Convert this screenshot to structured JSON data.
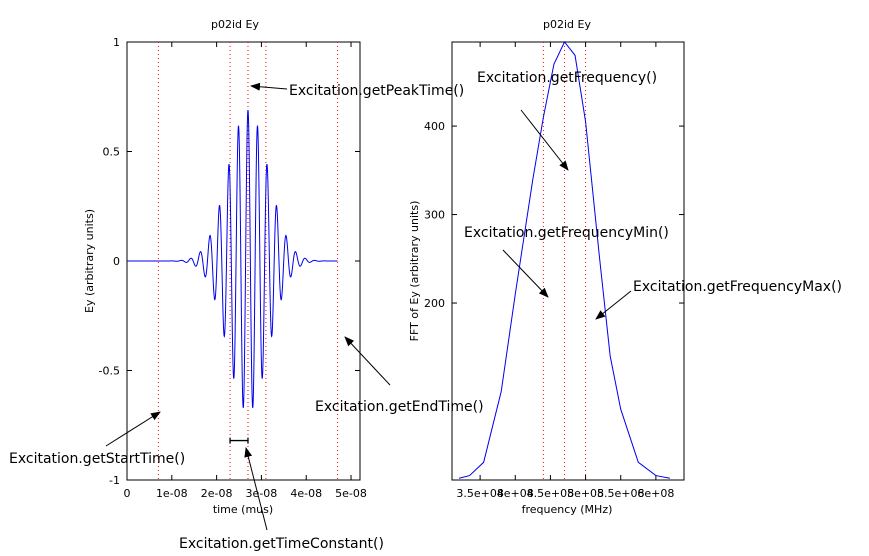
{
  "chart_data": [
    {
      "type": "line",
      "title": "p02id Ey",
      "xlabel": "time (mus)",
      "ylabel": "Ey (arbitrary units)",
      "xlim": [
        0,
        5.2e-08
      ],
      "ylim": [
        -1,
        1
      ],
      "x_ticks": [
        "0",
        "1e-08",
        "2e-08",
        "3e-08",
        "4e-08",
        "5e-08"
      ],
      "y_ticks": [
        "-1",
        "-0.5",
        "0",
        "0.5",
        "1"
      ],
      "series_color": "#0000ee",
      "waveform": {
        "kind": "gaussian-modulated sinusoid",
        "x_start": 0,
        "x_end": 4.7e-08,
        "peak_time": 2.7e-08,
        "time_constant": 4.5e-09,
        "frequency": 470000000.0,
        "peak_amplitude": 0.69
      },
      "reference_lines": [
        {
          "name": "start_time",
          "x": 7e-09
        },
        {
          "name": "peak_time_minus_tc",
          "x": 2.3e-08
        },
        {
          "name": "peak_time",
          "x": 2.7e-08
        },
        {
          "name": "peak_time_plus_tc",
          "x": 3.1e-08
        },
        {
          "name": "end_time",
          "x": 4.7e-08
        }
      ],
      "time_constant_bracket": {
        "x_from": 2.3e-08,
        "x_to": 2.7e-08,
        "y": -0.82
      },
      "reference_line_color": "#ff0000"
    },
    {
      "type": "line",
      "title": "p02id Ey",
      "xlabel": "frequency (MHz)",
      "ylabel": "FFT of Ey (arbitrary units)",
      "xlim": [
        310000000.0,
        640000000.0
      ],
      "ylim": [
        0,
        495
      ],
      "x_ticks": [
        "3.5e+08",
        "4e+08",
        "4.5e+08",
        "5e+08",
        "5.5e+08",
        "6e+08"
      ],
      "y_ticks": [
        "200",
        "300",
        "400"
      ],
      "series_color": "#0000ee",
      "x": [
        320000000.0,
        335000000.0,
        355000000.0,
        380000000.0,
        400000000.0,
        425000000.0,
        440000000.0,
        455000000.0,
        470000000.0,
        485000000.0,
        500000000.0,
        520000000.0,
        535000000.0,
        550000000.0,
        575000000.0,
        600000000.0,
        620000000.0
      ],
      "y": [
        2,
        5,
        20,
        100,
        210,
        340,
        410,
        470,
        495,
        480,
        405,
        250,
        140,
        80,
        20,
        5,
        2
      ],
      "reference_lines": [
        {
          "name": "frequency_min",
          "x": 440000000.0
        },
        {
          "name": "frequency",
          "x": 470000000.0
        },
        {
          "name": "frequency_max",
          "x": 500000000.0
        }
      ],
      "reference_line_color": "#ff0000"
    }
  ],
  "annotations": {
    "start_time": "Excitation.getStartTime()",
    "peak_time": "Excitation.getPeakTime()",
    "end_time": "Excitation.getEndTime()",
    "time_constant": "Excitation.getTimeConstant()",
    "frequency": "Excitation.getFrequency()",
    "frequency_min": "Excitation.getFrequencyMin()",
    "frequency_max": "Excitation.getFrequencyMax()"
  }
}
